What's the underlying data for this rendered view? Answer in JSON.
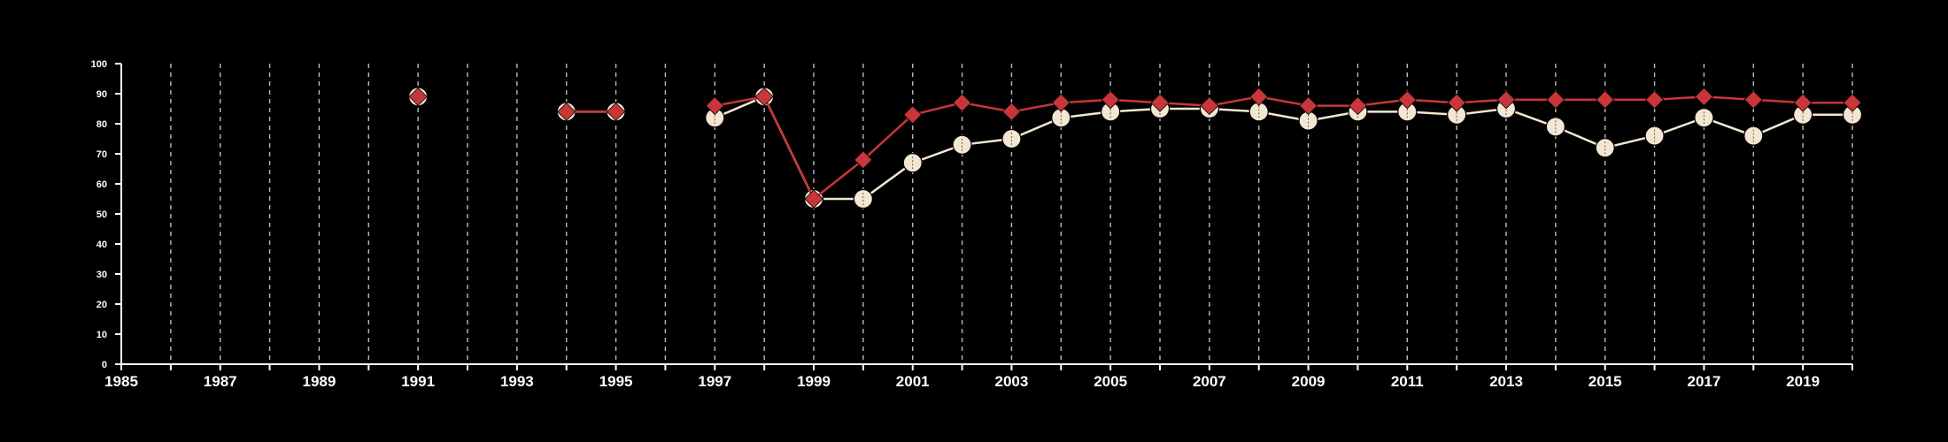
{
  "colors": {
    "background": "#000000",
    "axis": "#ffffff",
    "grid": "#bbbbbb",
    "series_white": "#f3e6d3",
    "series_red": "#c8363a"
  },
  "chart_data": {
    "type": "line",
    "title": "",
    "xlabel": "",
    "ylabel": "",
    "xlim": [
      1985,
      2020
    ],
    "ylim": [
      0,
      100
    ],
    "y_ticks": [
      0,
      10,
      20,
      30,
      40,
      50,
      60,
      70,
      80,
      90,
      100
    ],
    "x_ticks": [
      1985,
      1986,
      1987,
      1988,
      1989,
      1990,
      1991,
      1992,
      1993,
      1994,
      1995,
      1996,
      1997,
      1998,
      1999,
      2000,
      2001,
      2002,
      2003,
      2004,
      2005,
      2006,
      2007,
      2008,
      2009,
      2010,
      2011,
      2012,
      2013,
      2014,
      2015,
      2016,
      2017,
      2018,
      2019,
      2020
    ],
    "x_tick_labels": [
      "1985",
      "",
      "1987",
      "",
      "1989",
      "",
      "1991",
      "",
      "1993",
      "",
      "1995",
      "",
      "1997",
      "",
      "1999",
      "",
      "2001",
      "",
      "2003",
      "",
      "2005",
      "",
      "2007",
      "",
      "2009",
      "",
      "2011",
      "",
      "2013",
      "",
      "2015",
      "",
      "2017",
      "",
      "2019",
      ""
    ],
    "grid": "vertical dashed at each year",
    "series": [
      {
        "marker": "circle",
        "color": "#f3e6d3",
        "points": [
          [
            1991,
            89
          ],
          [
            1994,
            84
          ],
          [
            1995,
            84
          ],
          [
            1997,
            82
          ],
          [
            1998,
            89
          ],
          [
            1999,
            55
          ],
          [
            2000,
            55
          ],
          [
            2001,
            67
          ],
          [
            2002,
            73
          ],
          [
            2003,
            75
          ],
          [
            2004,
            82
          ],
          [
            2005,
            84
          ],
          [
            2006,
            85
          ],
          [
            2007,
            85
          ],
          [
            2008,
            84
          ],
          [
            2009,
            81
          ],
          [
            2010,
            84
          ],
          [
            2011,
            84
          ],
          [
            2012,
            83
          ],
          [
            2013,
            85
          ],
          [
            2014,
            79
          ],
          [
            2015,
            72
          ],
          [
            2016,
            76
          ],
          [
            2017,
            82
          ],
          [
            2018,
            76
          ],
          [
            2019,
            83
          ],
          [
            2020,
            83
          ]
        ]
      },
      {
        "marker": "diamond",
        "color": "#c8363a",
        "points": [
          [
            1991,
            89
          ],
          [
            1994,
            84
          ],
          [
            1995,
            84
          ],
          [
            1997,
            86
          ],
          [
            1998,
            89
          ],
          [
            1999,
            55
          ],
          [
            2000,
            68
          ],
          [
            2001,
            83
          ],
          [
            2002,
            87
          ],
          [
            2003,
            84
          ],
          [
            2004,
            87
          ],
          [
            2005,
            88
          ],
          [
            2006,
            87
          ],
          [
            2007,
            86
          ],
          [
            2008,
            89
          ],
          [
            2009,
            86
          ],
          [
            2010,
            86
          ],
          [
            2011,
            88
          ],
          [
            2012,
            87
          ],
          [
            2013,
            88
          ],
          [
            2014,
            88
          ],
          [
            2015,
            88
          ],
          [
            2016,
            88
          ],
          [
            2017,
            89
          ],
          [
            2018,
            88
          ],
          [
            2019,
            87
          ],
          [
            2020,
            87
          ]
        ]
      }
    ]
  }
}
